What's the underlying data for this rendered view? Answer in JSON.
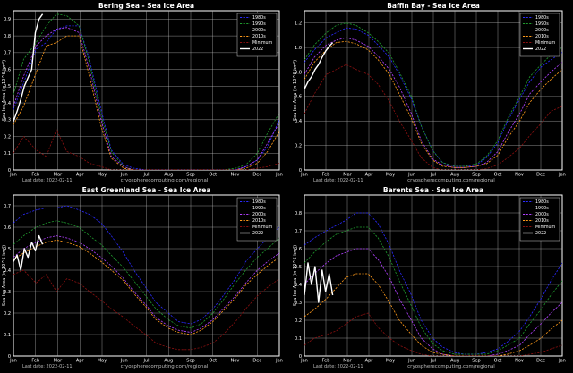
{
  "chart_data": [
    {
      "type": "line",
      "title": "Bering Sea - Sea Ice Area",
      "xlabel": "",
      "ylabel": "Sea Ice Area (in 10^6 km²)",
      "x_ticks": [
        "Jan",
        "Feb",
        "Mar",
        "Apr",
        "May",
        "Jun",
        "Jul",
        "Aug",
        "Sep",
        "Oct",
        "Nov",
        "Dec",
        "Jan"
      ],
      "ylim": [
        0,
        0.95
      ],
      "y_ticks": [
        "0",
        "0.1",
        "0.2",
        "0.3",
        "0.4",
        "0.5",
        "0.6",
        "0.7",
        "0.8",
        "0.9"
      ],
      "grid": true,
      "legend_position": "top-right",
      "last_date": "Last date: 2022-02-11",
      "credit": "cryospherecomputing.com/regional",
      "x": [
        1,
        15,
        32,
        46,
        60,
        74,
        91,
        105,
        121,
        135,
        152,
        166,
        182,
        196,
        213,
        227,
        244,
        258,
        274,
        288,
        305,
        319,
        335,
        349,
        365
      ],
      "series": [
        {
          "name": "1980s",
          "color": "#2a2aff",
          "values": [
            0.36,
            0.52,
            0.72,
            0.76,
            0.84,
            0.86,
            0.86,
            0.66,
            0.36,
            0.12,
            0.03,
            0.01,
            0.0,
            0.0,
            0.0,
            0.0,
            0.0,
            0.0,
            0.0,
            0.0,
            0.0,
            0.02,
            0.06,
            0.14,
            0.3
          ]
        },
        {
          "name": "1990s",
          "color": "#1f9a2e",
          "values": [
            0.45,
            0.66,
            0.76,
            0.86,
            0.93,
            0.92,
            0.86,
            0.64,
            0.33,
            0.11,
            0.02,
            0.0,
            0.0,
            0.0,
            0.0,
            0.0,
            0.0,
            0.0,
            0.0,
            0.0,
            0.01,
            0.03,
            0.1,
            0.22,
            0.34
          ]
        },
        {
          "name": "2000s",
          "color": "#b040ff",
          "values": [
            0.38,
            0.56,
            0.74,
            0.8,
            0.84,
            0.85,
            0.82,
            0.6,
            0.3,
            0.08,
            0.02,
            0.0,
            0.0,
            0.0,
            0.0,
            0.0,
            0.0,
            0.0,
            0.0,
            0.0,
            0.0,
            0.02,
            0.06,
            0.16,
            0.28
          ]
        },
        {
          "name": "2010s",
          "color": "#ff9a1a",
          "values": [
            0.27,
            0.38,
            0.58,
            0.74,
            0.76,
            0.8,
            0.8,
            0.56,
            0.26,
            0.07,
            0.01,
            0.0,
            0.0,
            0.0,
            0.0,
            0.0,
            0.0,
            0.0,
            0.0,
            0.0,
            0.0,
            0.01,
            0.04,
            0.11,
            0.23
          ]
        },
        {
          "name": "Minimum",
          "color": "#8a1010",
          "values": [
            0.1,
            0.2,
            0.12,
            0.08,
            0.24,
            0.11,
            0.08,
            0.04,
            0.02,
            0.0,
            0.0,
            0.0,
            0.0,
            0.0,
            0.0,
            0.0,
            0.0,
            0.0,
            0.0,
            0.0,
            0.0,
            0.0,
            0.01,
            0.02,
            0.04
          ]
        },
        {
          "name": "2022",
          "color": "#ffffff",
          "x": [
            1,
            6,
            11,
            16,
            21,
            26,
            31,
            36,
            41
          ],
          "values": [
            0.29,
            0.35,
            0.42,
            0.5,
            0.55,
            0.6,
            0.82,
            0.9,
            0.93
          ]
        }
      ]
    },
    {
      "type": "line",
      "title": "Baffin Bay - Sea Ice Area",
      "xlabel": "",
      "ylabel": "Sea Ice Area (in 10^6 km²)",
      "x_ticks": [
        "Jan",
        "Feb",
        "Mar",
        "Apr",
        "May",
        "Jun",
        "Jul",
        "Aug",
        "Sep",
        "Oct",
        "Nov",
        "Dec",
        "Jan"
      ],
      "ylim": [
        0,
        1.3
      ],
      "y_ticks": [
        "0",
        "0.2",
        "0.4",
        "0.6",
        "0.8",
        "1.0",
        "1.2"
      ],
      "grid": true,
      "legend_position": "top-right",
      "last_date": "Last date: 2022-02-11",
      "credit": "cryospherecomputing.com/regional",
      "x": [
        1,
        15,
        32,
        46,
        60,
        74,
        91,
        105,
        121,
        135,
        152,
        166,
        182,
        196,
        213,
        227,
        244,
        258,
        274,
        288,
        305,
        319,
        335,
        349,
        365
      ],
      "series": [
        {
          "name": "1980s",
          "color": "#2a2aff",
          "values": [
            0.88,
            0.98,
            1.08,
            1.12,
            1.16,
            1.15,
            1.1,
            1.02,
            0.92,
            0.78,
            0.58,
            0.36,
            0.16,
            0.06,
            0.03,
            0.03,
            0.04,
            0.1,
            0.22,
            0.4,
            0.58,
            0.72,
            0.84,
            0.9,
            0.96
          ]
        },
        {
          "name": "1990s",
          "color": "#1f9a2e",
          "values": [
            0.9,
            1.02,
            1.12,
            1.18,
            1.2,
            1.18,
            1.12,
            1.05,
            0.95,
            0.8,
            0.6,
            0.36,
            0.16,
            0.06,
            0.03,
            0.03,
            0.05,
            0.11,
            0.24,
            0.42,
            0.6,
            0.76,
            0.86,
            0.94,
            1.0
          ]
        },
        {
          "name": "2000s",
          "color": "#b040ff",
          "values": [
            0.78,
            0.92,
            1.02,
            1.06,
            1.08,
            1.06,
            1.01,
            0.93,
            0.82,
            0.68,
            0.46,
            0.24,
            0.09,
            0.04,
            0.02,
            0.02,
            0.03,
            0.06,
            0.15,
            0.3,
            0.46,
            0.62,
            0.72,
            0.8,
            0.88
          ]
        },
        {
          "name": "2010s",
          "color": "#ff9a1a",
          "values": [
            0.74,
            0.88,
            0.98,
            1.04,
            1.05,
            1.03,
            0.98,
            0.9,
            0.78,
            0.62,
            0.42,
            0.22,
            0.08,
            0.03,
            0.02,
            0.02,
            0.03,
            0.05,
            0.12,
            0.26,
            0.4,
            0.55,
            0.66,
            0.74,
            0.82
          ]
        },
        {
          "name": "Minimum",
          "color": "#8a1010",
          "values": [
            0.46,
            0.62,
            0.78,
            0.82,
            0.86,
            0.82,
            0.78,
            0.7,
            0.56,
            0.4,
            0.24,
            0.1,
            0.02,
            0.0,
            0.0,
            0.0,
            0.0,
            0.01,
            0.04,
            0.1,
            0.18,
            0.28,
            0.38,
            0.48,
            0.52
          ]
        },
        {
          "name": "2022",
          "color": "#ffffff",
          "x": [
            1,
            6,
            11,
            16,
            21,
            26,
            31,
            36,
            41
          ],
          "values": [
            0.66,
            0.72,
            0.76,
            0.82,
            0.86,
            0.92,
            0.97,
            1.01,
            1.04
          ]
        }
      ]
    },
    {
      "type": "line",
      "title": "East Greenland Sea - Sea Ice Area",
      "xlabel": "",
      "ylabel": "Sea Ice Area (in 10^6 km²)",
      "x_ticks": [
        "Jan",
        "Feb",
        "Mar",
        "Apr",
        "May",
        "Jun",
        "Jul",
        "Aug",
        "Sep",
        "Oct",
        "Nov",
        "Dec",
        "Jan"
      ],
      "ylim": [
        0,
        0.75
      ],
      "y_ticks": [
        "0",
        "0.1",
        "0.2",
        "0.3",
        "0.4",
        "0.5",
        "0.6",
        "0.7"
      ],
      "grid": true,
      "legend_position": "top-right",
      "last_date": "Last date: 2022-02-11",
      "credit": "cryospherecomputing.com/regional",
      "x": [
        1,
        15,
        32,
        46,
        60,
        74,
        91,
        105,
        121,
        135,
        152,
        166,
        182,
        196,
        213,
        227,
        244,
        258,
        274,
        288,
        305,
        319,
        335,
        349,
        365
      ],
      "series": [
        {
          "name": "1980s",
          "color": "#2a2aff",
          "values": [
            0.62,
            0.66,
            0.68,
            0.69,
            0.69,
            0.7,
            0.68,
            0.66,
            0.62,
            0.56,
            0.48,
            0.4,
            0.32,
            0.25,
            0.2,
            0.16,
            0.15,
            0.17,
            0.22,
            0.28,
            0.36,
            0.44,
            0.5,
            0.55,
            0.6
          ]
        },
        {
          "name": "1990s",
          "color": "#1f9a2e",
          "values": [
            0.52,
            0.56,
            0.6,
            0.62,
            0.63,
            0.62,
            0.6,
            0.56,
            0.52,
            0.47,
            0.41,
            0.35,
            0.28,
            0.22,
            0.17,
            0.14,
            0.13,
            0.15,
            0.2,
            0.26,
            0.34,
            0.4,
            0.46,
            0.5,
            0.55
          ]
        },
        {
          "name": "2000s",
          "color": "#b040ff",
          "values": [
            0.46,
            0.5,
            0.53,
            0.55,
            0.56,
            0.55,
            0.53,
            0.5,
            0.46,
            0.42,
            0.36,
            0.3,
            0.24,
            0.18,
            0.14,
            0.12,
            0.11,
            0.13,
            0.17,
            0.22,
            0.28,
            0.34,
            0.4,
            0.44,
            0.48
          ]
        },
        {
          "name": "2010s",
          "color": "#ff9a1a",
          "values": [
            0.45,
            0.48,
            0.51,
            0.53,
            0.54,
            0.53,
            0.51,
            0.48,
            0.44,
            0.4,
            0.35,
            0.29,
            0.23,
            0.17,
            0.13,
            0.11,
            0.1,
            0.12,
            0.16,
            0.21,
            0.27,
            0.33,
            0.38,
            0.42,
            0.46
          ]
        },
        {
          "name": "Minimum",
          "color": "#8a1010",
          "values": [
            0.38,
            0.4,
            0.34,
            0.38,
            0.3,
            0.36,
            0.34,
            0.3,
            0.26,
            0.22,
            0.18,
            0.14,
            0.1,
            0.06,
            0.04,
            0.03,
            0.03,
            0.04,
            0.06,
            0.1,
            0.16,
            0.22,
            0.28,
            0.32,
            0.36
          ]
        },
        {
          "name": "2022",
          "color": "#ffffff",
          "x": [
            1,
            6,
            11,
            16,
            21,
            26,
            31,
            36,
            41
          ],
          "values": [
            0.44,
            0.47,
            0.4,
            0.5,
            0.46,
            0.53,
            0.49,
            0.56,
            0.52
          ]
        }
      ]
    },
    {
      "type": "line",
      "title": "Barents Sea - Sea Ice Area",
      "xlabel": "",
      "ylabel": "Sea Ice Area (in 10^6 km²)",
      "x_ticks": [
        "Jan",
        "Feb",
        "Mar",
        "Apr",
        "May",
        "Jun",
        "Jul",
        "Aug",
        "Sep",
        "Oct",
        "Nov",
        "Dec",
        "Jan"
      ],
      "ylim": [
        0,
        0.9
      ],
      "y_ticks": [
        "0",
        "0.1",
        "0.2",
        "0.3",
        "0.4",
        "0.5",
        "0.6",
        "0.7",
        "0.8"
      ],
      "grid": true,
      "legend_position": "top-right",
      "last_date": "Last date: 2022-02-11",
      "credit": "cryospherecomputing.com/regional",
      "x": [
        1,
        15,
        32,
        46,
        60,
        74,
        91,
        105,
        121,
        135,
        152,
        166,
        182,
        196,
        213,
        227,
        244,
        258,
        274,
        288,
        305,
        319,
        335,
        349,
        365
      ],
      "series": [
        {
          "name": "1980s",
          "color": "#2a2aff",
          "values": [
            0.62,
            0.66,
            0.7,
            0.73,
            0.76,
            0.8,
            0.8,
            0.74,
            0.62,
            0.48,
            0.34,
            0.2,
            0.1,
            0.05,
            0.02,
            0.01,
            0.01,
            0.02,
            0.04,
            0.08,
            0.14,
            0.22,
            0.32,
            0.42,
            0.52
          ]
        },
        {
          "name": "1990s",
          "color": "#1f9a2e",
          "values": [
            0.52,
            0.58,
            0.64,
            0.68,
            0.7,
            0.72,
            0.72,
            0.66,
            0.55,
            0.42,
            0.28,
            0.16,
            0.07,
            0.03,
            0.01,
            0.01,
            0.01,
            0.01,
            0.03,
            0.06,
            0.1,
            0.18,
            0.26,
            0.34,
            0.42
          ]
        },
        {
          "name": "2000s",
          "color": "#b040ff",
          "values": [
            0.4,
            0.46,
            0.52,
            0.56,
            0.58,
            0.6,
            0.6,
            0.54,
            0.44,
            0.32,
            0.2,
            0.1,
            0.04,
            0.01,
            0.0,
            0.0,
            0.0,
            0.0,
            0.01,
            0.03,
            0.06,
            0.12,
            0.18,
            0.24,
            0.3
          ]
        },
        {
          "name": "2010s",
          "color": "#ff9a1a",
          "values": [
            0.22,
            0.26,
            0.32,
            0.38,
            0.44,
            0.46,
            0.46,
            0.4,
            0.3,
            0.2,
            0.12,
            0.06,
            0.02,
            0.01,
            0.0,
            0.0,
            0.0,
            0.0,
            0.0,
            0.01,
            0.03,
            0.06,
            0.1,
            0.15,
            0.2
          ]
        },
        {
          "name": "Minimum",
          "color": "#8a1010",
          "values": [
            0.06,
            0.1,
            0.12,
            0.14,
            0.18,
            0.22,
            0.24,
            0.16,
            0.1,
            0.06,
            0.03,
            0.01,
            0.0,
            0.0,
            0.0,
            0.0,
            0.0,
            0.0,
            0.0,
            0.0,
            0.0,
            0.01,
            0.02,
            0.04,
            0.06
          ]
        },
        {
          "name": "2022",
          "color": "#ffffff",
          "x": [
            1,
            6,
            11,
            16,
            21,
            26,
            31,
            36,
            41
          ],
          "values": [
            0.34,
            0.52,
            0.4,
            0.5,
            0.3,
            0.48,
            0.36,
            0.46,
            0.34
          ]
        }
      ]
    }
  ]
}
